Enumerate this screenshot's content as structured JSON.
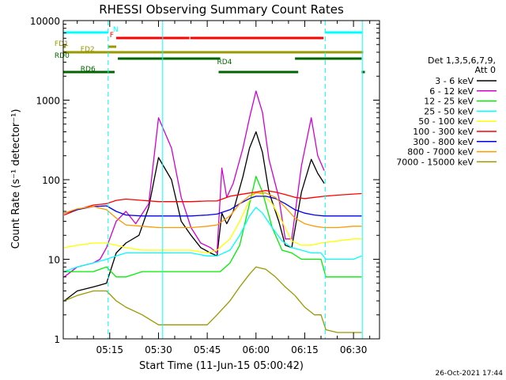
{
  "chart_data": {
    "type": "line",
    "title": "RHESSI Observing Summary Count Rates",
    "xlabel": "Start Time (11-Jun-15 05:00:42)",
    "ylabel": "Count Rate (s⁻¹ detector⁻¹)",
    "yscale": "log",
    "xlim": [
      0.7,
      98.0
    ],
    "ylim": [
      1,
      10000
    ],
    "x_ticks": [
      {
        "v": 15,
        "label": "05:15"
      },
      {
        "v": 30,
        "label": "05:30"
      },
      {
        "v": 45,
        "label": "05:45"
      },
      {
        "v": 60,
        "label": "06:00"
      },
      {
        "v": 75,
        "label": "06:15"
      },
      {
        "v": 90,
        "label": "06:30"
      }
    ],
    "y_ticks": [
      {
        "v": 1,
        "label": "1"
      },
      {
        "v": 10,
        "label": "10"
      },
      {
        "v": 100,
        "label": "100"
      },
      {
        "v": 1000,
        "label": "1000"
      },
      {
        "v": 10000,
        "label": "10000"
      }
    ],
    "vlines": [
      14.5,
      31.3,
      81.3,
      92.7
    ],
    "legend_header": [
      "Det 1,3,5,6,7,9,",
      "Att 0"
    ],
    "series": [
      {
        "name": "3 - 6 keV",
        "color": "#000000",
        "x": [
          1,
          5,
          10,
          14,
          17,
          20,
          24,
          27,
          30,
          34,
          37,
          40,
          43,
          46,
          48,
          49.5,
          51,
          53,
          56,
          58,
          60,
          62,
          64,
          67,
          69,
          71,
          74,
          77,
          79,
          81
        ],
        "y": [
          3,
          4,
          4.5,
          5,
          12,
          16,
          20,
          45,
          190,
          100,
          30,
          20,
          14,
          12,
          11,
          38,
          28,
          40,
          110,
          250,
          400,
          220,
          70,
          30,
          15,
          14,
          70,
          180,
          120,
          90
        ]
      },
      {
        "name": "6 - 12 keV",
        "color": "#d000d0",
        "x": [
          1,
          5,
          10,
          12,
          14,
          17,
          20,
          23,
          27,
          30,
          34,
          37,
          40,
          43,
          46,
          48,
          49.5,
          51,
          53,
          56,
          58,
          60,
          62,
          64,
          67,
          69,
          71,
          74,
          77,
          79,
          81
        ],
        "y": [
          6,
          8,
          9,
          10,
          14,
          30,
          40,
          28,
          50,
          600,
          250,
          60,
          25,
          16,
          14,
          12,
          140,
          60,
          90,
          250,
          600,
          1300,
          700,
          180,
          60,
          18,
          18,
          150,
          600,
          200,
          130
        ]
      },
      {
        "name": "12 - 25 keV",
        "color": "#00ee00",
        "x": [
          1,
          5,
          10,
          14,
          17,
          20,
          25,
          30,
          35,
          40,
          45,
          49,
          52,
          55,
          58,
          60,
          62,
          65,
          68,
          71,
          74,
          77,
          80,
          81.5,
          85,
          90,
          92.5
        ],
        "y": [
          7,
          7,
          7,
          8,
          6,
          6,
          7,
          7,
          7,
          7,
          7,
          7,
          9,
          15,
          50,
          110,
          70,
          25,
          13,
          12,
          10,
          10,
          10,
          6,
          6,
          6,
          6
        ]
      },
      {
        "name": "25 - 50 keV",
        "color": "#00ffff",
        "x": [
          1,
          5,
          10,
          14,
          17,
          20,
          25,
          30,
          35,
          40,
          45,
          48,
          52,
          55,
          58,
          60,
          62,
          65,
          68,
          71,
          74,
          77,
          80,
          81.5,
          85,
          90,
          92.5
        ],
        "y": [
          7,
          8,
          9,
          10,
          11,
          12,
          12,
          12,
          12,
          12,
          11,
          11,
          13,
          20,
          35,
          45,
          38,
          25,
          17,
          14,
          13,
          12,
          12,
          10,
          10,
          10,
          11
        ]
      },
      {
        "name": "50 - 100 keV",
        "color": "#ffff00",
        "x": [
          1,
          5,
          10,
          14,
          17,
          20,
          25,
          30,
          35,
          40,
          45,
          48,
          52,
          55,
          58,
          60,
          62,
          65,
          68,
          71,
          74,
          77,
          80,
          85,
          90,
          92.5
        ],
        "y": [
          14,
          15,
          16,
          16,
          15,
          14,
          13,
          13,
          13,
          13,
          12,
          13,
          18,
          30,
          55,
          70,
          65,
          50,
          30,
          17,
          15,
          15,
          16,
          17,
          18,
          18
        ]
      },
      {
        "name": "100 - 300 keV",
        "color": "#ff0000",
        "x": [
          1,
          5,
          10,
          14,
          17,
          20,
          25,
          30,
          35,
          40,
          45,
          48,
          52,
          55,
          58,
          60,
          63,
          66,
          69,
          72,
          75,
          78,
          81,
          85,
          90,
          92.5
        ],
        "y": [
          36,
          42,
          48,
          50,
          55,
          57,
          55,
          53,
          53,
          53,
          54,
          54,
          62,
          65,
          68,
          70,
          73,
          70,
          65,
          60,
          58,
          60,
          62,
          64,
          66,
          67
        ]
      },
      {
        "name": "300 - 800 keV",
        "color": "#0000ee",
        "x": [
          1,
          5,
          10,
          14,
          17,
          20,
          25,
          30,
          35,
          40,
          45,
          48,
          52,
          55,
          58,
          60,
          63,
          66,
          69,
          72,
          75,
          78,
          81,
          85,
          90,
          92.5
        ],
        "y": [
          38,
          42,
          46,
          47,
          40,
          36,
          35,
          35,
          35,
          35,
          36,
          37,
          42,
          50,
          58,
          62,
          62,
          58,
          50,
          42,
          38,
          36,
          35,
          35,
          35,
          35
        ]
      },
      {
        "name": "800 - 7000 keV",
        "color": "#ff9900",
        "x": [
          1,
          5,
          10,
          14,
          17,
          20,
          25,
          30,
          35,
          40,
          45,
          48,
          52,
          55,
          58,
          60,
          63,
          66,
          69,
          72,
          75,
          78,
          81,
          85,
          90,
          92.5
        ],
        "y": [
          38,
          43,
          46,
          42,
          33,
          27,
          26,
          25,
          25,
          25,
          26,
          27,
          35,
          50,
          63,
          68,
          68,
          60,
          45,
          33,
          28,
          26,
          25,
          25,
          26,
          26
        ]
      },
      {
        "name": "7000 - 15000 keV",
        "color": "#999900",
        "x": [
          1,
          5,
          10,
          14,
          17,
          20,
          25,
          30,
          35,
          40,
          45,
          48,
          52,
          55,
          58,
          60,
          63,
          66,
          69,
          72,
          75,
          78,
          80,
          81.5,
          85,
          90,
          92.5
        ],
        "y": [
          3,
          3.5,
          4,
          4,
          3,
          2.5,
          2,
          1.5,
          1.5,
          1.5,
          1.5,
          2,
          3,
          4.5,
          6.5,
          8,
          7.5,
          6,
          4.5,
          3.5,
          2.5,
          2,
          2,
          1.3,
          1.2,
          1.2,
          1.2
        ]
      }
    ],
    "flags": [
      {
        "label": "N",
        "color": "#00ffff",
        "segments": [
          [
            0.8,
            14.5
          ],
          [
            81.3,
            92.7
          ]
        ],
        "level": "N",
        "label_at": 16
      },
      {
        "label": "F",
        "color": "#ff0000",
        "segments": [
          [
            17,
            39.5
          ],
          [
            39.8,
            80.8
          ]
        ],
        "level": "F",
        "label_at": 15
      },
      {
        "label": "FD1",
        "color": "#999900",
        "segments": [
          [
            0.8,
            1.5
          ],
          [
            14.5,
            17
          ]
        ],
        "level": "FD1",
        "label_at": -2
      },
      {
        "label": "FD2",
        "color": "#999900",
        "segments": [
          [
            0.8,
            93
          ]
        ],
        "level": "FD2",
        "label_at": 6
      },
      {
        "label": "RD0",
        "color": "#006600",
        "segments": [
          [
            17.5,
            49
          ],
          [
            72,
            92.5
          ]
        ],
        "level": "RD0",
        "label_at": -2
      },
      {
        "label": "RD4",
        "color": "#006600",
        "segments": [],
        "level": "RD4",
        "label_at": 48
      },
      {
        "label": "RD6",
        "color": "#006600",
        "segments": [
          [
            0.8,
            16.5
          ],
          [
            48.5,
            73
          ],
          [
            92.5,
            93.5
          ]
        ],
        "level": "RD6",
        "label_at": 6
      }
    ]
  },
  "footer": {
    "date": "26-Oct-2021 17:44"
  }
}
